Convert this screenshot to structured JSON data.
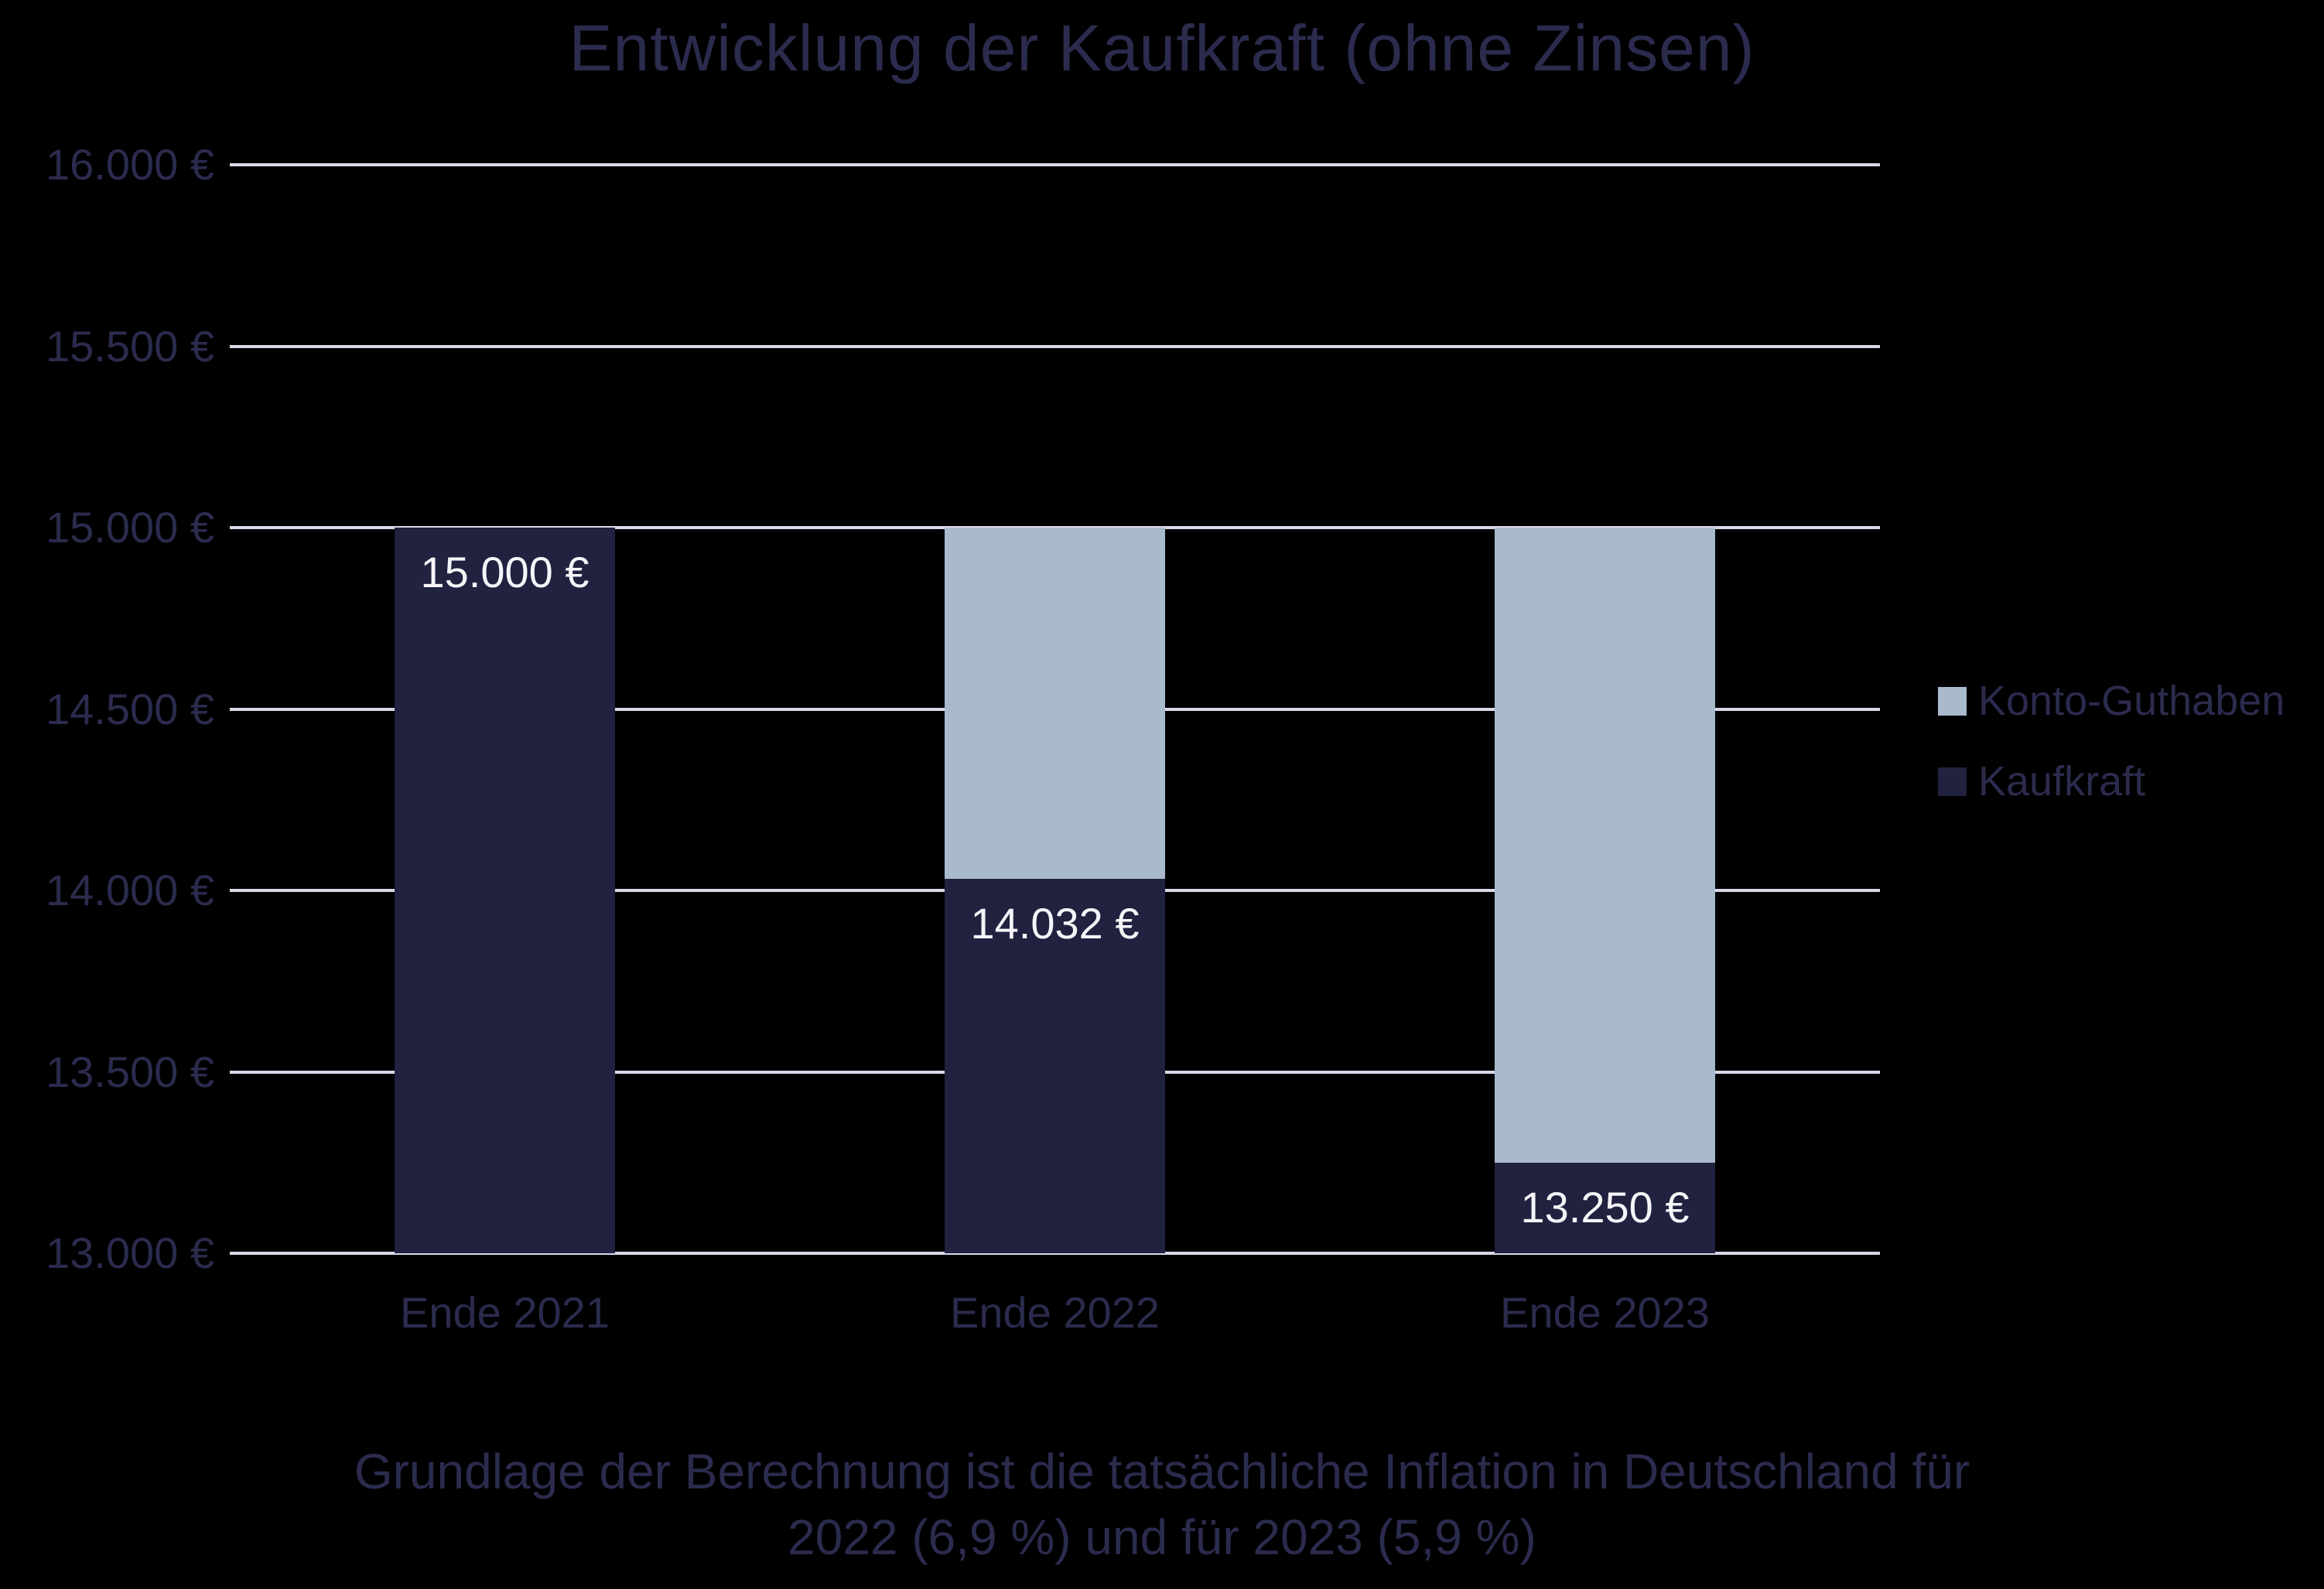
{
  "chart_data": {
    "type": "bar",
    "title": "Entwicklung der Kaufkraft (ohne Zinsen)",
    "categories": [
      "Ende 2021",
      "Ende 2022",
      "Ende 2023"
    ],
    "series": [
      {
        "name": "Konto-Guthaben",
        "color": "#a9bacd",
        "values": [
          15000,
          15000,
          15000
        ]
      },
      {
        "name": "Kaufkraft",
        "color": "#212140",
        "values": [
          15000,
          14032,
          13250
        ]
      }
    ],
    "bar_labels": [
      "15.000 €",
      "14.032 €",
      "13.250 €"
    ],
    "ylim": [
      13000,
      16000
    ],
    "yticks": [
      {
        "value": 16000,
        "label": "16.000 €"
      },
      {
        "value": 15500,
        "label": "15.500 €"
      },
      {
        "value": 15000,
        "label": "15.000 €"
      },
      {
        "value": 14500,
        "label": "14.500 €"
      },
      {
        "value": 14000,
        "label": "14.000 €"
      },
      {
        "value": 13500,
        "label": "13.500 €"
      },
      {
        "value": 13000,
        "label": "13.000 €"
      }
    ],
    "grid": true,
    "legend_position": "right",
    "colors": {
      "background": "#000000",
      "gridline": "#d8d8ea",
      "text": "#2b2b4e",
      "value_label_text": "#f5f5f8"
    },
    "caption_lines": [
      "Grundlage der Berechnung ist die tatsächliche Inflation in Deutschland für",
      "2022 (6,9 %) und für 2023 (5,9 %)"
    ]
  }
}
